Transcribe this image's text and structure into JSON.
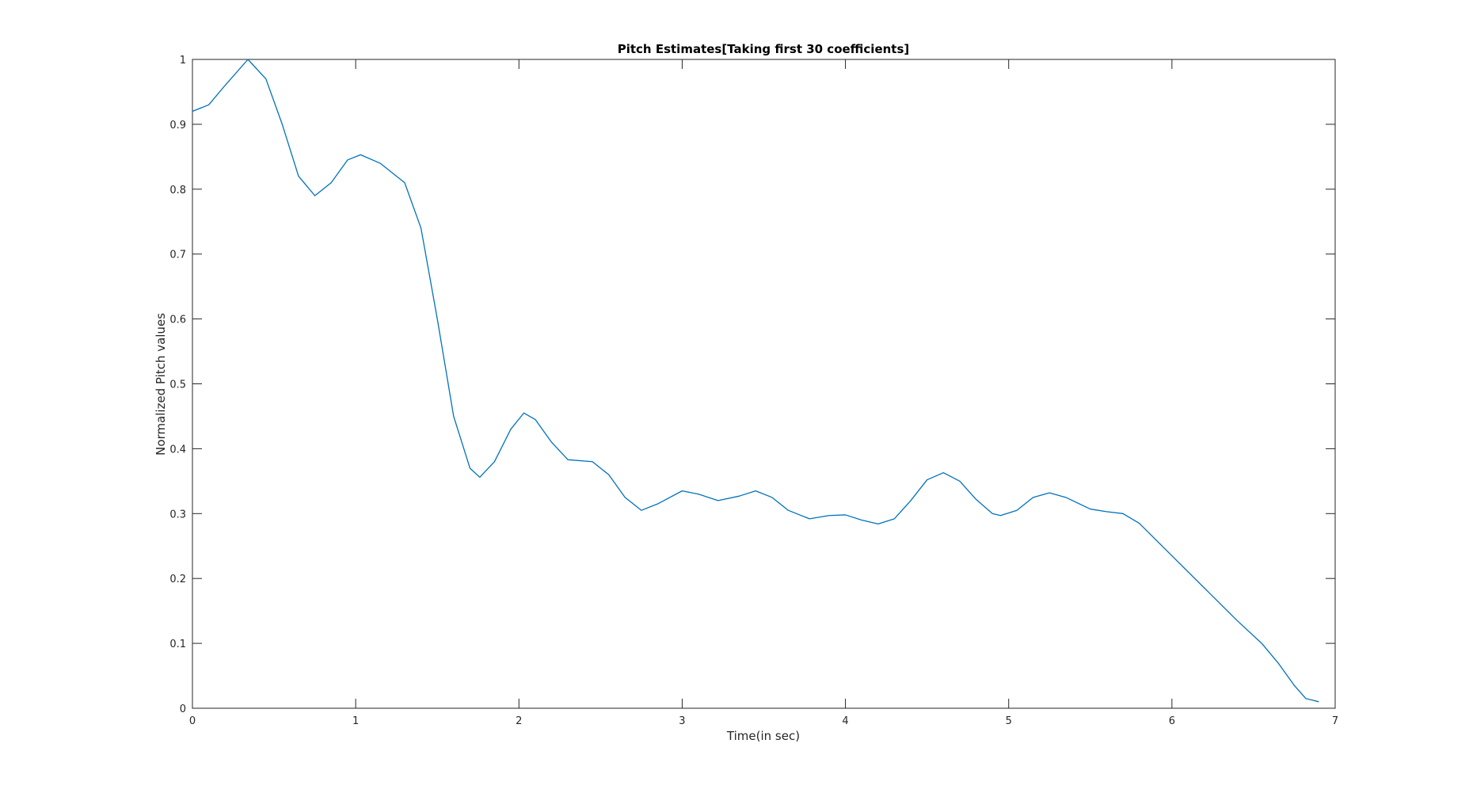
{
  "chart_data": {
    "type": "line",
    "title": "Pitch Estimates[Taking first 30 coefficients]",
    "x_label": "Time(in sec)",
    "y_label": "Normalized Pitch values",
    "xlim": [
      0,
      7
    ],
    "ylim": [
      0,
      1
    ],
    "xticks": [
      0,
      1,
      2,
      3,
      4,
      5,
      6,
      7
    ],
    "yticks": [
      0,
      0.1,
      0.2,
      0.3,
      0.4,
      0.5,
      0.6,
      0.7,
      0.8,
      0.9,
      1
    ],
    "grid": false,
    "series": [
      {
        "color": "#0072bd",
        "x": [
          0,
          0.1,
          0.2,
          0.34,
          0.45,
          0.55,
          0.65,
          0.75,
          0.85,
          0.95,
          1.03,
          1.15,
          1.3,
          1.4,
          1.5,
          1.6,
          1.7,
          1.76,
          1.85,
          1.95,
          2.03,
          2.1,
          2.2,
          2.3,
          2.45,
          2.55,
          2.65,
          2.75,
          2.85,
          3.0,
          3.1,
          3.22,
          3.35,
          3.45,
          3.55,
          3.65,
          3.78,
          3.9,
          4.0,
          4.1,
          4.2,
          4.3,
          4.4,
          4.5,
          4.6,
          4.7,
          4.8,
          4.9,
          4.95,
          5.05,
          5.15,
          5.25,
          5.35,
          5.5,
          5.6,
          5.7,
          5.8,
          5.9,
          6.0,
          6.2,
          6.4,
          6.55,
          6.65,
          6.75,
          6.82,
          6.9
        ],
        "values": [
          0.92,
          0.93,
          0.96,
          1.0,
          0.97,
          0.9,
          0.82,
          0.79,
          0.81,
          0.845,
          0.853,
          0.84,
          0.81,
          0.74,
          0.6,
          0.45,
          0.37,
          0.356,
          0.38,
          0.43,
          0.455,
          0.445,
          0.41,
          0.383,
          0.38,
          0.36,
          0.325,
          0.305,
          0.315,
          0.335,
          0.33,
          0.32,
          0.327,
          0.335,
          0.325,
          0.305,
          0.292,
          0.297,
          0.298,
          0.29,
          0.284,
          0.292,
          0.32,
          0.352,
          0.363,
          0.35,
          0.322,
          0.3,
          0.297,
          0.305,
          0.325,
          0.332,
          0.325,
          0.307,
          0.303,
          0.3,
          0.285,
          0.26,
          0.235,
          0.185,
          0.135,
          0.1,
          0.07,
          0.035,
          0.015,
          0.01
        ]
      }
    ]
  }
}
